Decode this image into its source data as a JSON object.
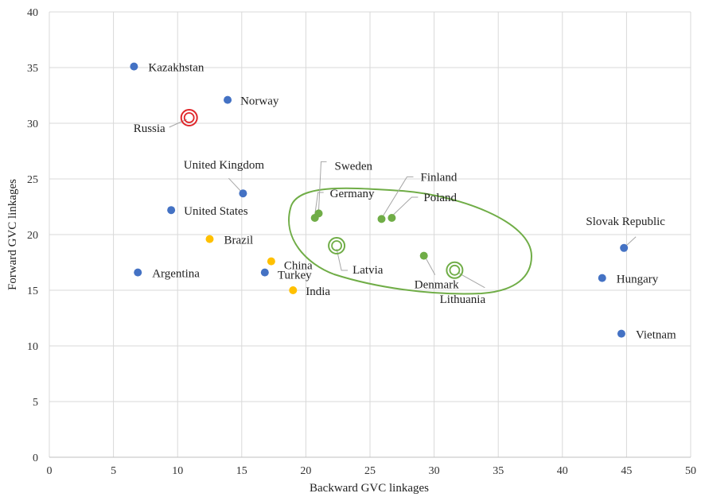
{
  "chart_data": {
    "type": "scatter",
    "xlabel": "Backward GVC linkages",
    "ylabel": "Forward GVC linkages",
    "xlim": [
      0,
      50
    ],
    "ylim": [
      0,
      40
    ],
    "xticks": [
      "0",
      "5",
      "10",
      "15",
      "20",
      "25",
      "30",
      "35",
      "40",
      "45",
      "50"
    ],
    "yticks": [
      "0",
      "5",
      "10",
      "15",
      "20",
      "25",
      "30",
      "35",
      "40"
    ],
    "grid": "on",
    "colors": {
      "blue": "#4472C4",
      "yellow": "#FFC000",
      "green": "#70AD47",
      "red": "#E0272B",
      "grid": "#D9D9D9",
      "leader": "#A6A6A6"
    },
    "points": [
      {
        "label": "Kazakhstan",
        "x": 6.6,
        "y": 35.1,
        "color": "blue"
      },
      {
        "label": "Norway",
        "x": 13.9,
        "y": 32.1,
        "color": "blue"
      },
      {
        "label": "Russia",
        "x": 10.9,
        "y": 30.5,
        "color": "red",
        "highlight": true
      },
      {
        "label": "United Kingdom",
        "x": 15.1,
        "y": 23.7,
        "color": "blue"
      },
      {
        "label": "United States",
        "x": 9.5,
        "y": 22.2,
        "color": "blue"
      },
      {
        "label": "Brazil",
        "x": 12.5,
        "y": 19.6,
        "color": "yellow"
      },
      {
        "label": "Argentina",
        "x": 6.9,
        "y": 16.6,
        "color": "blue"
      },
      {
        "label": "China",
        "x": 17.3,
        "y": 17.6,
        "color": "yellow"
      },
      {
        "label": "Turkey",
        "x": 16.8,
        "y": 16.6,
        "color": "blue"
      },
      {
        "label": "India",
        "x": 19.0,
        "y": 15.0,
        "color": "yellow"
      },
      {
        "label": "Sweden",
        "x": 21.0,
        "y": 21.9,
        "color": "green"
      },
      {
        "label": "Germany",
        "x": 20.7,
        "y": 21.5,
        "color": "green"
      },
      {
        "label": "Finland",
        "x": 25.9,
        "y": 21.4,
        "color": "green"
      },
      {
        "label": "Poland",
        "x": 26.7,
        "y": 21.5,
        "color": "green"
      },
      {
        "label": "Latvia",
        "x": 22.4,
        "y": 19.0,
        "color": "green",
        "highlight": true
      },
      {
        "label": "Denmark",
        "x": 29.2,
        "y": 18.1,
        "color": "green"
      },
      {
        "label": "Lithuania",
        "x": 31.6,
        "y": 16.8,
        "color": "green",
        "highlight": true
      },
      {
        "label": "Slovak Republic",
        "x": 44.8,
        "y": 18.8,
        "color": "blue"
      },
      {
        "label": "Hungary",
        "x": 43.1,
        "y": 16.1,
        "color": "blue"
      },
      {
        "label": "Vietnam",
        "x": 44.6,
        "y": 11.1,
        "color": "blue"
      }
    ]
  }
}
